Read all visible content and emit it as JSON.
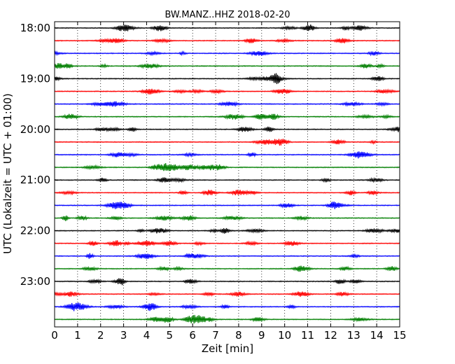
{
  "chart_data": {
    "type": "line",
    "title": "BW.MANZ..HHZ 2018-02-20",
    "xlabel": "Zeit  [min]",
    "ylabel": "UTC (Lokalzeit = UTC + 01:00)",
    "xlim": [
      0,
      15
    ],
    "x_ticks": [
      "0",
      "1",
      "2",
      "3",
      "4",
      "5",
      "6",
      "7",
      "8",
      "9",
      "10",
      "11",
      "12",
      "13",
      "14",
      "15"
    ],
    "y_ticks": [
      "18:00",
      "19:00",
      "20:00",
      "21:00",
      "22:00",
      "23:00"
    ],
    "grid": "vertical dotted",
    "trace_colors": [
      "#000000",
      "#ff0000",
      "#0000ff",
      "#007f00"
    ],
    "series": [
      {
        "start": "18:00"
      },
      {
        "start": "18:15"
      },
      {
        "start": "18:30"
      },
      {
        "start": "18:45"
      },
      {
        "start": "19:00"
      },
      {
        "start": "19:15"
      },
      {
        "start": "19:30"
      },
      {
        "start": "19:45"
      },
      {
        "start": "20:00"
      },
      {
        "start": "20:15"
      },
      {
        "start": "20:30"
      },
      {
        "start": "20:45"
      },
      {
        "start": "21:00"
      },
      {
        "start": "21:15"
      },
      {
        "start": "21:30"
      },
      {
        "start": "21:45"
      },
      {
        "start": "22:00"
      },
      {
        "start": "22:15"
      },
      {
        "start": "22:30"
      },
      {
        "start": "22:45"
      },
      {
        "start": "23:00"
      },
      {
        "start": "23:15"
      },
      {
        "start": "23:30"
      },
      {
        "start": "23:45"
      }
    ]
  }
}
